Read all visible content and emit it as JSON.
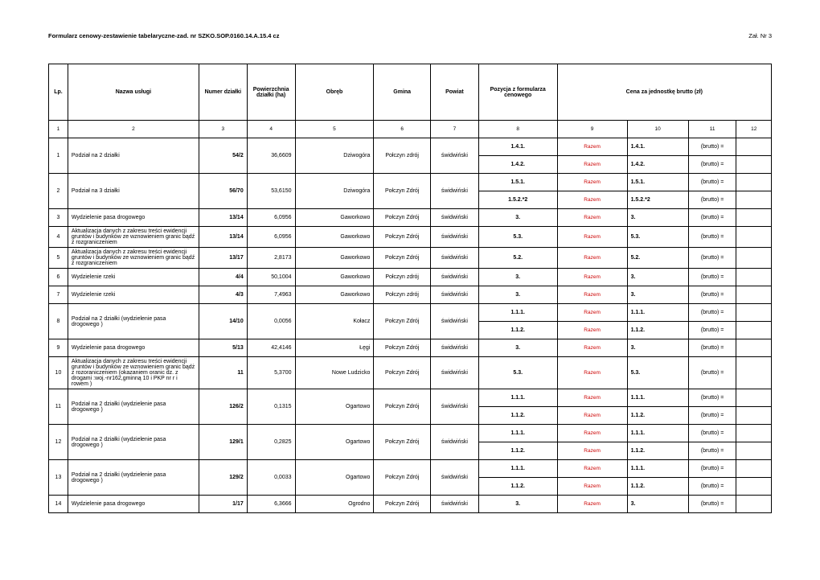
{
  "header": {
    "title": "Formularz cenowy-zestawienie tabelaryczne-zad. nr SZKO.SOP.0160.14.A.15.4 cz",
    "annex": "Zał. Nr 3"
  },
  "columns": {
    "lp": "Lp.",
    "name": "Nazwa usługi",
    "num": "Numer działki",
    "area": "Powierzchnia działki (ha)",
    "obreb": "Obręb",
    "gmina": "Gmina",
    "powiat": "Powiat",
    "poz": "Pozycja z formularza cenowego",
    "cena": "Cena za jednostkę brutto (zł)"
  },
  "numrow": [
    "1",
    "2",
    "3",
    "4",
    "5",
    "6",
    "7",
    "8",
    "9",
    "10",
    "11",
    "12"
  ],
  "razem_label": "Razem",
  "rows": [
    {
      "lp": "1",
      "name": "Podział na 2 działki",
      "num": "54/2",
      "area": "36,6609",
      "obreb": "Dziwogóra",
      "gmina": "Połczyn zdrój",
      "powiat": "świdwiński",
      "subs": [
        {
          "poz": "1.4.1.",
          "c10": "1.4.1.",
          "brutto": "(brutto) ="
        },
        {
          "poz": "1.4.2.",
          "c10": "1.4.2.",
          "brutto": "(brutto) ="
        }
      ]
    },
    {
      "lp": "2",
      "name": "Podział na 3 działki",
      "num": "56/70",
      "area": "53,6150",
      "obreb": "Dziwogóra",
      "gmina": "Połczyn Zdrój",
      "powiat": "świdwiński",
      "subs": [
        {
          "poz": "1.5.1.",
          "c10": "1.5.1.",
          "brutto": "(brutto) ="
        },
        {
          "poz": "1.5.2.*2",
          "c10": "1.5.2.*2",
          "brutto": "(brutto) ="
        }
      ]
    },
    {
      "lp": "3",
      "name": "Wydzielenie pasa drogowego",
      "num": "13/14",
      "area": "6,0956",
      "obreb": "Gaworkowo",
      "gmina": "Połczyn Zdrój",
      "powiat": "świdwiński",
      "subs": [
        {
          "poz": "3.",
          "c10": "3.",
          "brutto": "(brutto) ="
        }
      ]
    },
    {
      "lp": "4",
      "name": "Aktualizacja danych z zakresu treści ewidencji gruntów i budynków ze wznowieniem granic bądź z rozgraniczeniem",
      "num": "13/14",
      "area": "6,0956",
      "obreb": "Gaworkowo",
      "gmina": "Połczyn Zdrój",
      "powiat": "świdwiński",
      "subs": [
        {
          "poz": "5.3.",
          "c10": "5.3.",
          "brutto": "(brutto) ="
        }
      ]
    },
    {
      "lp": "5",
      "name": "Aktualizacja danych z zakresu treści ewidencji gruntów i budynków ze wznowieniem granic bądź z rozgraniczeniem",
      "num": "13/17",
      "area": "2,8173",
      "obreb": "Gaworkowo",
      "gmina": "Połczyn Zdrój",
      "powiat": "świdwiński",
      "subs": [
        {
          "poz": "5.2.",
          "c10": "5.2.",
          "brutto": "(brutto) ="
        }
      ]
    },
    {
      "lp": "6",
      "name": "Wydzielenie rzeki",
      "num": "4/4",
      "area": "50,1004",
      "obreb": "Gaworkowo",
      "gmina": "Połczyn zdrój",
      "powiat": "świdwiński",
      "subs": [
        {
          "poz": "3.",
          "c10": "3.",
          "brutto": "(brutto) ="
        }
      ]
    },
    {
      "lp": "7",
      "name": "Wydzielenie rzeki",
      "num": "4/3",
      "area": "7,4963",
      "obreb": "Gaworkowo",
      "gmina": "Połczyn zdrój",
      "powiat": "świdwiński",
      "subs": [
        {
          "poz": "3.",
          "c10": "3.",
          "brutto": "(brutto) ="
        }
      ]
    },
    {
      "lp": "8",
      "name": "Podział na 2 działki (wydzielenie pasa drogowego )",
      "num": "14/10",
      "area": "0,0056",
      "obreb": "Kołacz",
      "gmina": "Połczyn Zdrój",
      "powiat": "świdwiński",
      "subs": [
        {
          "poz": "1.1.1.",
          "c10": "1.1.1.",
          "brutto": "(brutto) ="
        },
        {
          "poz": "1.1.2.",
          "c10": "1.1.2.",
          "brutto": "(brutto) ="
        }
      ]
    },
    {
      "lp": "9",
      "name": "Wydzielenie pasa drogowego",
      "num": "5/13",
      "area": "42,4146",
      "obreb": "Łęgi",
      "gmina": "Połczyn Zdrój",
      "powiat": "świdwiński",
      "subs": [
        {
          "poz": "3.",
          "c10": "3.",
          "brutto": "(brutto) ="
        }
      ]
    },
    {
      "lp": "10",
      "name": "Aktualizacja danych z zakresu treści ewidencji gruntów i budynków ze wznowieniem granic bądż z rozoraniczeniem (okazaniem oranic dz. z drogami :woj.-nr162,gminną 10 i PKP nr r i rowem )",
      "num": "11",
      "area": "5,3700",
      "obreb": "Nowe Ludzicko",
      "gmina": "Połczyn Zdrój",
      "powiat": "świdwiński",
      "subs": [
        {
          "poz": "5.3.",
          "c10": "5.3.",
          "brutto": "(brutto) ="
        }
      ]
    },
    {
      "lp": "11",
      "name": "Podział na 2 działki (wydzielenie pasa drogowego )",
      "num": "126/2",
      "area": "0,1315",
      "obreb": "Ogartowo",
      "gmina": "Połczyn Zdrój",
      "powiat": "świdwiński",
      "subs": [
        {
          "poz": "1.1.1.",
          "c10": "1.1.1.",
          "brutto": "(brutto) ="
        },
        {
          "poz": "1.1.2.",
          "c10": "1.1.2.",
          "brutto": "(brutto) ="
        }
      ]
    },
    {
      "lp": "12",
      "name": "Podział na 2 działki (wydzielenie pasa drogowego )",
      "num": "129/1",
      "area": "0,2825",
      "obreb": "Ogartowo",
      "gmina": "Połczyn Zdrój",
      "powiat": "świdwiński",
      "subs": [
        {
          "poz": "1.1.1.",
          "c10": "1.1.1.",
          "brutto": "(brutto) ="
        },
        {
          "poz": "1.1.2.",
          "c10": "1.1.2.",
          "brutto": "(brutto) ="
        }
      ]
    },
    {
      "lp": "13",
      "name": "Podział na 2 działki (wydzielenie pasa drogowego )",
      "num": "129/2",
      "area": "0,0033",
      "obreb": "Ogartowo",
      "gmina": "Połczyn Zdrój",
      "powiat": "świdwiński",
      "subs": [
        {
          "poz": "1.1.1.",
          "c10": "1.1.1.",
          "brutto": "(brutto) ="
        },
        {
          "poz": "1.1.2.",
          "c10": "1.1.2.",
          "brutto": "(brutto) ="
        }
      ]
    },
    {
      "lp": "14",
      "name": "Wydzielenie pasa drogowego",
      "num": "1/17",
      "area": "6,3666",
      "obreb": "Ogrodno",
      "gmina": "Połczyn Zdrój",
      "powiat": "świdwiński",
      "subs": [
        {
          "poz": "3.",
          "c10": "3.",
          "brutto": "(brutto) ="
        }
      ]
    }
  ]
}
